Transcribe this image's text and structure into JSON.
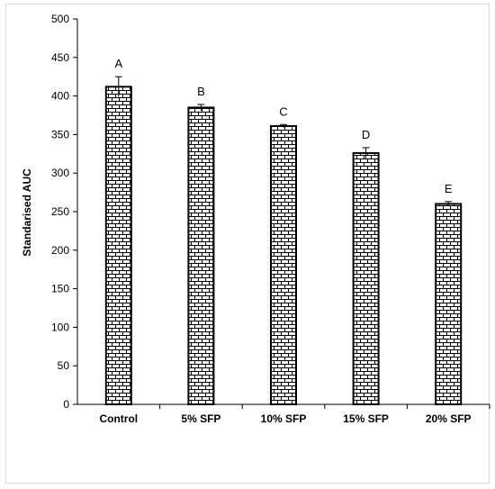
{
  "chart_data": {
    "type": "bar",
    "categories": [
      "Control",
      "5% SFP",
      "10% SFP",
      "15% SFP",
      "20% SFP"
    ],
    "values": [
      412,
      385,
      361,
      326,
      260
    ],
    "errors": [
      13,
      4,
      2,
      7,
      3
    ],
    "data_labels": [
      "A",
      "B",
      "C",
      "D",
      "E"
    ],
    "title": "",
    "xlabel": "",
    "ylabel": "Standarised AUC",
    "ylim": [
      0,
      500
    ],
    "yticks": [
      0,
      50,
      100,
      150,
      200,
      250,
      300,
      350,
      400,
      450,
      500
    ],
    "grid": false,
    "legend": "none",
    "bar_fill": "brick-pattern",
    "colors": {
      "bar_stroke": "#000000",
      "pattern_bg": "#ffffff",
      "pattern_line": "#000000"
    }
  }
}
